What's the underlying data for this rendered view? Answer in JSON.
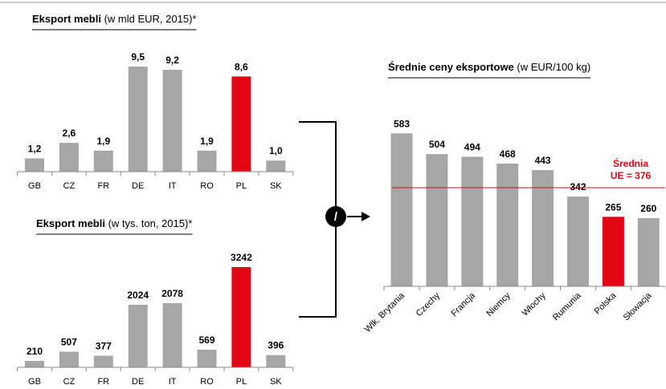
{
  "chart_data": [
    {
      "type": "bar",
      "title": "Eksport mebli",
      "title_note": "(w mld EUR, 2015)*",
      "categories": [
        "GB",
        "CZ",
        "FR",
        "DE",
        "IT",
        "RO",
        "PL",
        "SK"
      ],
      "values": [
        1.2,
        2.6,
        1.9,
        9.5,
        9.2,
        1.9,
        8.6,
        1.0
      ],
      "value_labels": [
        "1,2",
        "2,6",
        "1,9",
        "9,5",
        "9,2",
        "1,9",
        "8,6",
        "1,0"
      ],
      "colors": [
        "#a6a6a6",
        "#a6a6a6",
        "#a6a6a6",
        "#a6a6a6",
        "#a6a6a6",
        "#a6a6a6",
        "#e30613",
        "#a6a6a6"
      ],
      "ylim": [
        0,
        10
      ]
    },
    {
      "type": "bar",
      "title": "Eksport mebli",
      "title_note": "(w tys. ton, 2015)*",
      "categories": [
        "GB",
        "CZ",
        "FR",
        "DE",
        "IT",
        "RO",
        "PL",
        "SK"
      ],
      "values": [
        210,
        507,
        377,
        2024,
        2078,
        569,
        3242,
        396
      ],
      "colors": [
        "#a6a6a6",
        "#a6a6a6",
        "#a6a6a6",
        "#a6a6a6",
        "#a6a6a6",
        "#a6a6a6",
        "#e30613",
        "#a6a6a6"
      ],
      "ylim": [
        0,
        3500
      ]
    },
    {
      "type": "bar",
      "title": "Średnie ceny eksportowe",
      "title_note": "(w EUR/100 kg)",
      "categories": [
        "Wlk. Brytania",
        "Czechy",
        "Francja",
        "Niemcy",
        "Włochy",
        "Rumunia",
        "Polska",
        "Słowacja"
      ],
      "values": [
        583,
        504,
        494,
        468,
        443,
        342,
        265,
        260
      ],
      "colors": [
        "#a6a6a6",
        "#a6a6a6",
        "#a6a6a6",
        "#a6a6a6",
        "#a6a6a6",
        "#a6a6a6",
        "#e30613",
        "#a6a6a6"
      ],
      "ylim": [
        0,
        700
      ],
      "reference": {
        "value": 376,
        "color": "#e30613",
        "label_lines": [
          "Średnia",
          "UE = 376"
        ]
      }
    }
  ],
  "operator": "/"
}
